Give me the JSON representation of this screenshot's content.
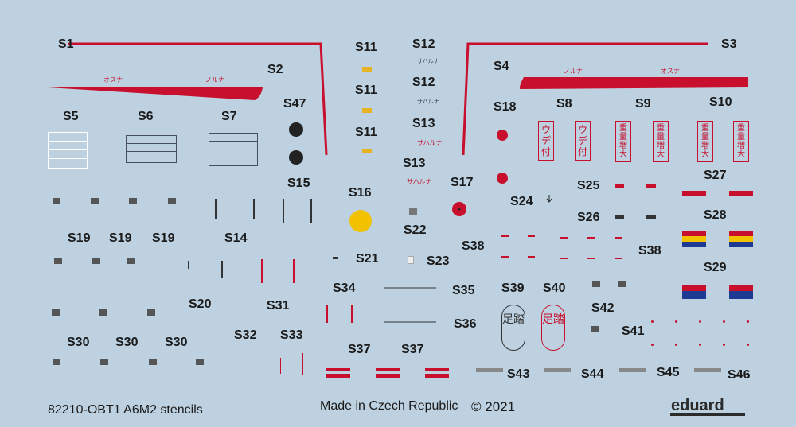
{
  "labels": {
    "s1": "S1",
    "s2": "S2",
    "s3": "S3",
    "s4": "S4",
    "s5": "S5",
    "s6": "S6",
    "s7": "S7",
    "s8": "S8",
    "s9": "S9",
    "s10": "S10",
    "s11a": "S11",
    "s11b": "S11",
    "s11c": "S11",
    "s12a": "S12",
    "s12b": "S12",
    "s13a": "S13",
    "s13b": "S13",
    "s14": "S14",
    "s15": "S15",
    "s16": "S16",
    "s17": "S17",
    "s18": "S18",
    "s19a": "S19",
    "s19b": "S19",
    "s19c": "S19",
    "s20": "S20",
    "s21": "S21",
    "s22": "S22",
    "s23": "S23",
    "s24": "S24",
    "s25": "S25",
    "s26": "S26",
    "s27": "S27",
    "s28": "S28",
    "s29": "S29",
    "s30a": "S30",
    "s30b": "S30",
    "s30c": "S30",
    "s31": "S31",
    "s32": "S32",
    "s33": "S33",
    "s34": "S34",
    "s35": "S35",
    "s36": "S36",
    "s37a": "S37",
    "s37b": "S37",
    "s38a": "S38",
    "s38b": "S38",
    "s39": "S39",
    "s40": "S40",
    "s41": "S41",
    "s42": "S42",
    "s43": "S43",
    "s44": "S44",
    "s45": "S45",
    "s46": "S46",
    "s47": "S47"
  },
  "stencil_text": {
    "osuna_left": "オスナ",
    "noruna_left": "ノルナ",
    "noruna_right": "ノルナ",
    "osuna_right": "オスナ",
    "saharuna_1": "サハルナ",
    "saharuna_2": "サハルナ",
    "saharuna_3": "サハルナ",
    "saharuna_4": "サハルナ",
    "ude_tsuki": "ウデ付",
    "juryo_zodai": "重量増大",
    "ashi_fumi": "足踏"
  },
  "footer": {
    "code": "82210-OBT1 A6M2 stencils",
    "origin": "Made in Czech Republic",
    "copyright": "© 2021",
    "brand": "eduard"
  },
  "colors": {
    "background": "#bdd1e0",
    "stripe_red": "#c8102e",
    "hinomaru_red": "#c8102e",
    "yellow": "#f2c200",
    "black": "#222222",
    "blue": "#1f3a93",
    "label": "#1a1a1a"
  }
}
